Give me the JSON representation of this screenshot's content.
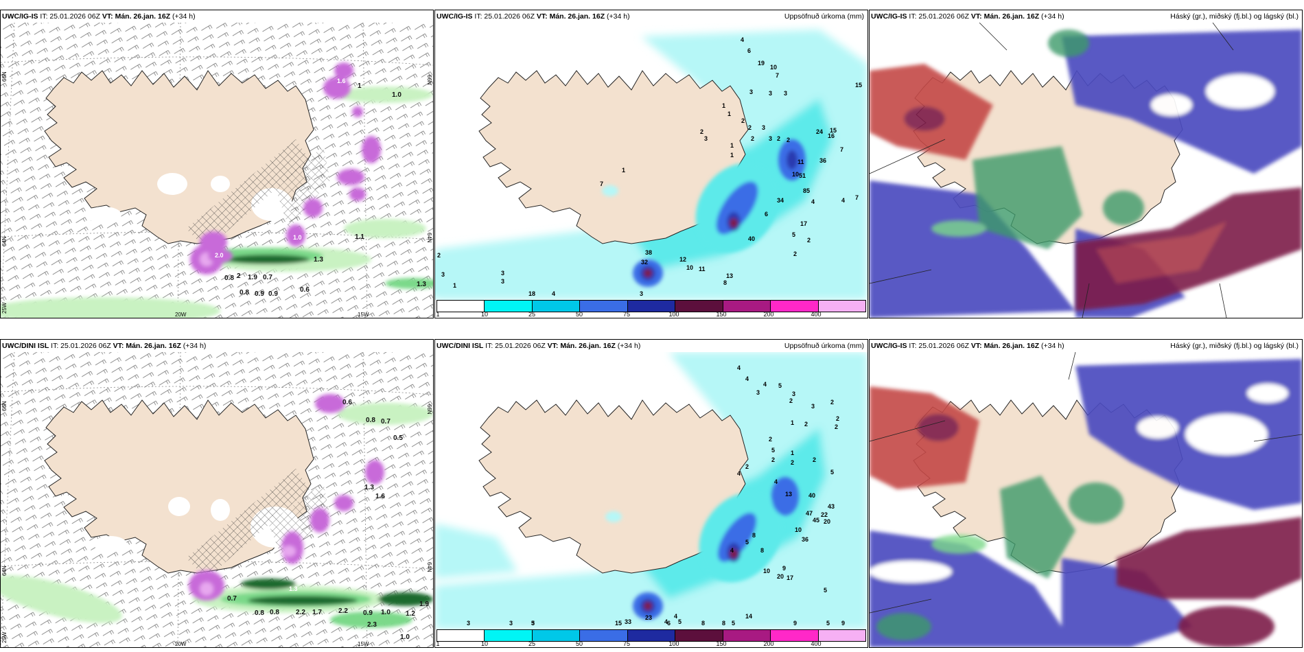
{
  "colors": {
    "land": "#f3e1cf",
    "coast": "#222222",
    "light_green": "#c9f2c2",
    "mid_green": "#7cd98a",
    "dark_green": "#1d6b2e",
    "magenta": "#c86ad9",
    "magenta_light": "#e7a7ef",
    "cyan_light": "#b6f7f7",
    "cyan": "#5deaea",
    "blue": "#3a6de6",
    "navy": "#2a3ab0",
    "maroon": "#7d1f4a",
    "red": "#c44a47",
    "cloud_blue": "#4b4cbf",
    "cloud_green": "#3e9a6a"
  },
  "panels": [
    {
      "model": "UWC/IG-IS",
      "it_label": " IT: 25.01.2026 06Z ",
      "vt_label": "VT: Mán. 26.jan. 16Z",
      "lead": " (+34 h)",
      "title_right": "",
      "lat_labels": [
        "66N",
        "64N",
        "25W",
        "66N",
        "64N"
      ],
      "lon_labels": [
        "20W",
        "15W"
      ],
      "values": [
        "1.0",
        "1",
        "0.8",
        "2",
        "1.9",
        "0.7",
        "0.6",
        "0.8",
        "0.9",
        "0.9",
        "1.1",
        "1.3",
        "2.0",
        "1.6",
        "1.0",
        "1.3"
      ]
    },
    {
      "model": "UWC/IG-IS",
      "it_label": " IT: 25.01.2026 06Z ",
      "vt_label": "VT: Mán. 26.jan. 16Z",
      "lead": " (+34 h)",
      "title_right": "Uppsöfnuð úrkoma (mm)",
      "values": [
        "4",
        "6",
        "19",
        "10",
        "7",
        "15",
        "3",
        "3",
        "3",
        "1",
        "1",
        "2",
        "2",
        "3",
        "2",
        "3",
        "2",
        "3",
        "2",
        "2",
        "1",
        "1",
        "24",
        "15",
        "16",
        "36",
        "7",
        "11",
        "10",
        "51",
        "85",
        "34",
        "4",
        "4",
        "7",
        "6",
        "17",
        "40",
        "32",
        "38",
        "12",
        "10",
        "11",
        "13",
        "8",
        "5",
        "2",
        "2",
        "2",
        "3",
        "1",
        "3",
        "3",
        "18",
        "4",
        "3",
        "1",
        "7"
      ],
      "legend": [
        "1",
        "10",
        "25",
        "50",
        "75",
        "100",
        "150",
        "200",
        "400"
      ]
    },
    {
      "model": "UWC/IG-IS",
      "it_label": " IT: 25.01.2026 06Z ",
      "vt_label": "VT: Mán. 26.jan. 16Z",
      "lead": " (+34 h)",
      "title_right": "Háský (gr.), miðský (fj.bl.) og lágský (bl.)"
    },
    {
      "model": "UWC/DINI ISL",
      "it_label": " IT: 25.01.2026 06Z ",
      "vt_label": "VT: Mán. 26.jan. 16Z",
      "lead": " (+34 h)",
      "title_right": "",
      "lat_labels": [
        "66N",
        "64N",
        "25W",
        "66N",
        "64N"
      ],
      "lon_labels": [
        "20W",
        "15W"
      ],
      "values": [
        "0.8",
        "0.7",
        "0.5",
        "0.6",
        "1.3",
        "1.6",
        "0.7",
        "0.8",
        "2.2",
        "1.7",
        "2.2",
        "1.3",
        "0.9",
        "1.0",
        "1.2",
        "1.9",
        "2.3",
        "1.0",
        "0.8"
      ]
    },
    {
      "model": "UWC/DINI ISL",
      "it_label": " IT: 25.01.2026 06Z ",
      "vt_label": "VT: Mán. 26.jan. 16Z",
      "lead": " (+34 h)",
      "title_right": "Uppsöfnuð úrkoma (mm)",
      "values": [
        "4",
        "4",
        "4",
        "5",
        "3",
        "3",
        "3",
        "2",
        "2",
        "2",
        "2",
        "1",
        "2",
        "2",
        "5",
        "2",
        "1",
        "2",
        "2",
        "2",
        "4",
        "4",
        "5",
        "13",
        "40",
        "43",
        "20",
        "22",
        "47",
        "45",
        "10",
        "36",
        "8",
        "5",
        "8",
        "4",
        "9",
        "10",
        "17",
        "14",
        "20",
        "23",
        "33",
        "4",
        "4",
        "5",
        "6",
        "5",
        "5",
        "9",
        "9",
        "3",
        "5",
        "3",
        "3",
        "15",
        "8",
        "8",
        "5"
      ],
      "legend": [
        "1",
        "10",
        "25",
        "50",
        "75",
        "100",
        "150",
        "200",
        "400"
      ]
    },
    {
      "model": "UWC/IG-IS",
      "it_label": " IT: 25.01.2026 06Z ",
      "vt_label": "VT: Mán. 26.jan. 16Z",
      "lead": " (+34 h)",
      "title_right": "Háský (gr.), miðský (fj.bl.) og lágský (bl.)"
    }
  ]
}
